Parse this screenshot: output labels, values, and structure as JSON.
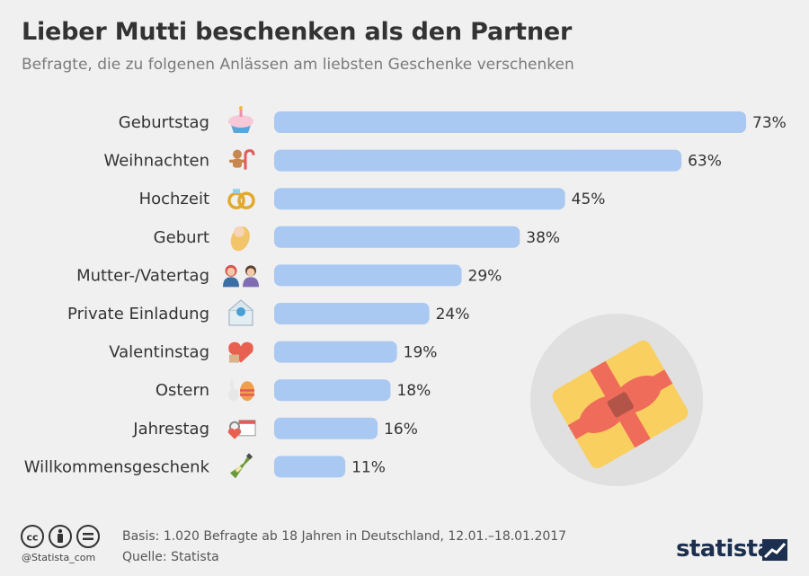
{
  "title": "Lieber Mutti beschenken als den Partner",
  "subtitle": "Befragte, die zu folgenen Anlässen am liebsten Geschenke verschenken",
  "chart_data": {
    "type": "bar",
    "orientation": "horizontal",
    "categories": [
      "Geburtstag",
      "Weihnachten",
      "Hochzeit",
      "Geburt",
      "Mutter-/Vatertag",
      "Private Einladung",
      "Valentinstag",
      "Ostern",
      "Jahrestag",
      "Willkommensgeschenk"
    ],
    "values": [
      73,
      63,
      45,
      38,
      29,
      24,
      19,
      18,
      16,
      11
    ],
    "value_labels": [
      "73%",
      "63%",
      "45%",
      "38%",
      "29%",
      "24%",
      "19%",
      "18%",
      "16%",
      "11%"
    ],
    "unit": "%",
    "xlim": [
      0,
      73
    ],
    "grid": false,
    "legend": "none",
    "bar_color": "#a9c8f2",
    "icons": [
      "cupcake-icon",
      "gingerbread-icon",
      "rings-icon",
      "baby-icon",
      "parents-icon",
      "invitation-icon",
      "heart-gift-icon",
      "easter-icon",
      "anniversary-icon",
      "champagne-icon"
    ]
  },
  "footer": {
    "basis": "Basis: 1.020 Befragte ab 18 Jahren in Deutschland, 12.01.–18.01.2017",
    "source": "Quelle: Statista",
    "handle": "@Statista_com",
    "logo": "statista"
  },
  "colors": {
    "background": "#f0f0f0",
    "bar": "#a9c8f2",
    "gift_box": "#f9cf5f",
    "gift_ribbon": "#ef6b5a",
    "logo": "#1c2f4f"
  }
}
